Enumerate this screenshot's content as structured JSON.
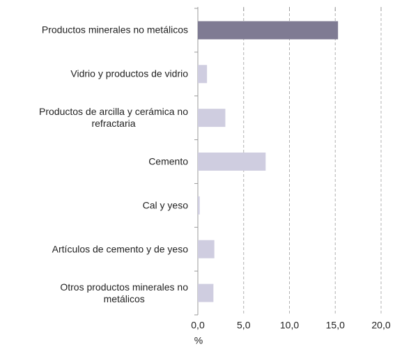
{
  "chart_data": {
    "type": "bar",
    "orientation": "horizontal",
    "categories": [
      "Productos minerales no metálicos",
      "Vidrio y productos de vidrio",
      "Productos de arcilla y cerámica no\nrefractaria",
      "Cemento",
      "Cal y yeso",
      "Artículos de cemento y de yeso",
      "Otros productos minerales no\nmetálicos"
    ],
    "values": [
      15.3,
      1.0,
      3.0,
      7.4,
      0.2,
      1.8,
      1.7
    ],
    "colors": [
      "#7f7b93",
      "#cfcde0",
      "#cfcde0",
      "#cfcde0",
      "#cfcde0",
      "#cfcde0",
      "#cfcde0"
    ],
    "xlim": [
      0,
      20
    ],
    "xticks": [
      {
        "value": 0,
        "label": "0,0"
      },
      {
        "value": 5,
        "label": "5,0"
      },
      {
        "value": 10,
        "label": "10,0"
      },
      {
        "value": 15,
        "label": "15,0"
      },
      {
        "value": 20,
        "label": "20,0"
      }
    ],
    "x_label": "%",
    "grid": true
  }
}
